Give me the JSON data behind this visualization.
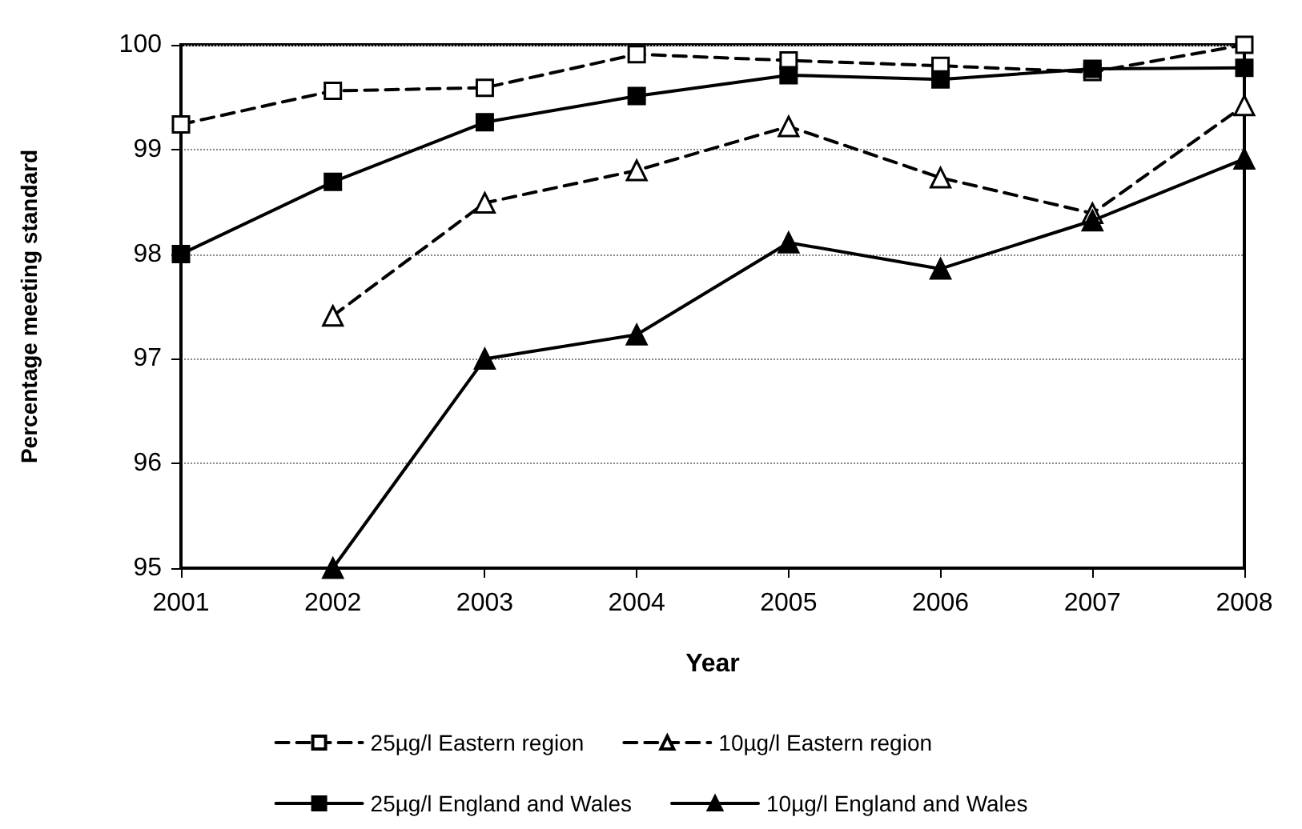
{
  "chart_data": {
    "type": "line",
    "xlabel": "Year",
    "ylabel": "Percentage meeting standard",
    "categories": [
      "2001",
      "2002",
      "2003",
      "2004",
      "2005",
      "2006",
      "2007",
      "2008"
    ],
    "ylim": [
      95,
      100
    ],
    "yticks": [
      95,
      96,
      97,
      98,
      99,
      100
    ],
    "grid": "y",
    "legend": "bottom",
    "series": [
      {
        "name": "25µg/l Eastern region",
        "color": "#000000",
        "marker": "square",
        "line_style": "dashed",
        "values": [
          99.24,
          99.56,
          99.59,
          99.91,
          99.85,
          99.8,
          99.74,
          100.0
        ]
      },
      {
        "name": "10µg/l Eastern region",
        "color": "#000000",
        "marker": "triangle",
        "line_style": "dashed",
        "values": [
          null,
          97.41,
          98.49,
          98.8,
          99.22,
          98.73,
          98.39,
          99.42
        ]
      },
      {
        "name": "25µg/l England and Wales",
        "color": "#000000",
        "marker": "square",
        "line_style": "solid",
        "values": [
          98.0,
          98.69,
          99.26,
          99.51,
          99.71,
          99.67,
          99.77,
          99.78
        ]
      },
      {
        "name": "10µg/l England and Wales",
        "color": "#000000",
        "marker": "triangle",
        "line_style": "solid",
        "values": [
          null,
          95.0,
          97.0,
          97.23,
          98.11,
          97.86,
          98.32,
          98.91
        ]
      }
    ]
  }
}
